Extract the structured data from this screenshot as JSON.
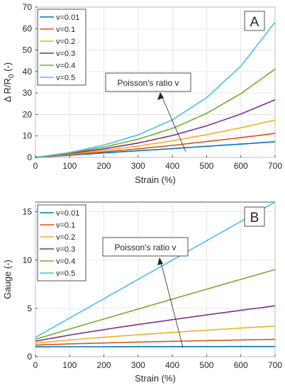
{
  "chart_data": [
    {
      "type": "line",
      "panel_label": "A",
      "xlabel": "Strain (%)",
      "ylabel_parts": {
        "main": "Δ R/R",
        "sub": "0",
        "tail": " (-)"
      },
      "xlim": [
        0,
        700
      ],
      "ylim": [
        0,
        70
      ],
      "xticks": [
        0,
        100,
        200,
        300,
        400,
        500,
        600,
        700
      ],
      "yticks": [
        0,
        10,
        20,
        30,
        40,
        50,
        60,
        70
      ],
      "grid": true,
      "legend_position": "top-left",
      "annotation": {
        "text": "Poisson's ratio v",
        "arrow": "points upward across curves (increasing v)"
      },
      "x": [
        0,
        100,
        200,
        300,
        400,
        500,
        600,
        700
      ],
      "series": [
        {
          "name": "v=0.01",
          "color": "#0072bd",
          "values": [
            0,
            1.0,
            2.1,
            3.1,
            4.1,
            5.2,
            6.2,
            7.3
          ]
        },
        {
          "name": "v=0.1",
          "color": "#d95319",
          "values": [
            0,
            1.2,
            2.6,
            4.0,
            5.6,
            7.4,
            9.2,
            11.2
          ]
        },
        {
          "name": "v=0.2",
          "color": "#edb120",
          "values": [
            0,
            1.5,
            3.3,
            5.3,
            7.7,
            10.6,
            13.8,
            17.4
          ]
        },
        {
          "name": "v=0.3",
          "color": "#7e2f8e",
          "values": [
            0,
            1.8,
            4.0,
            6.7,
            10.2,
            14.7,
            20.2,
            26.8
          ]
        },
        {
          "name": "v=0.4",
          "color": "#77ac30",
          "values": [
            0,
            2.1,
            4.8,
            8.5,
            13.5,
            20.5,
            29.7,
            41.1
          ]
        },
        {
          "name": "v=0.5",
          "color": "#4dbeee",
          "values": [
            0,
            2.3,
            5.7,
            10.5,
            17.5,
            27.8,
            42.5,
            63.0
          ]
        }
      ]
    },
    {
      "type": "line",
      "panel_label": "B",
      "xlabel": "Strain (%)",
      "ylabel": "Gauge (-)",
      "xlim": [
        0,
        700
      ],
      "ylim": [
        0,
        16
      ],
      "xticks": [
        0,
        100,
        200,
        300,
        400,
        500,
        600,
        700
      ],
      "yticks": [
        0,
        5,
        10,
        15
      ],
      "grid": true,
      "legend_position": "top-left",
      "annotation": {
        "text": "Poisson's ratio v",
        "arrow": "points upward across curves (increasing v)"
      },
      "x": [
        0,
        100,
        200,
        300,
        400,
        500,
        600,
        700
      ],
      "series": [
        {
          "name": "v=0.01",
          "color": "#0072bd",
          "values": [
            1.02,
            1.03,
            1.03,
            1.04,
            1.04,
            1.04,
            1.05,
            1.05
          ]
        },
        {
          "name": "v=0.1",
          "color": "#d95319",
          "values": [
            1.2,
            1.32,
            1.42,
            1.51,
            1.59,
            1.66,
            1.73,
            1.79
          ]
        },
        {
          "name": "v=0.2",
          "color": "#edb120",
          "values": [
            1.4,
            1.73,
            2.01,
            2.27,
            2.51,
            2.74,
            2.96,
            3.17
          ]
        },
        {
          "name": "v=0.3",
          "color": "#7e2f8e",
          "values": [
            1.6,
            2.24,
            2.8,
            3.33,
            3.83,
            4.32,
            4.8,
            5.26
          ]
        },
        {
          "name": "v=0.4",
          "color": "#77ac30",
          "values": [
            1.8,
            2.86,
            3.9,
            4.93,
            5.96,
            6.98,
            8.0,
            9.02
          ]
        },
        {
          "name": "v=0.5",
          "color": "#4dbeee",
          "values": [
            2.0,
            4.0,
            6.0,
            8.0,
            10.0,
            12.0,
            14.0,
            16.0
          ]
        }
      ]
    }
  ]
}
